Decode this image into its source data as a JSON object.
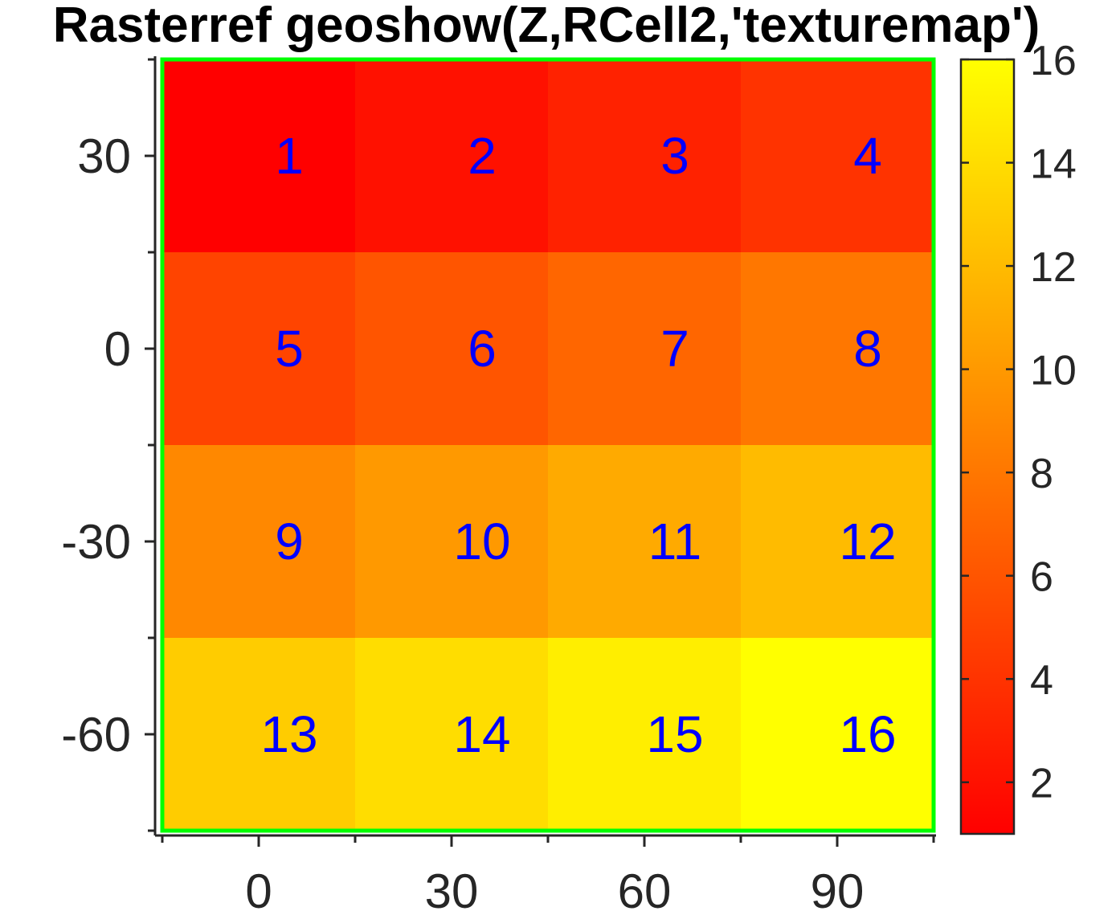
{
  "chart_data": {
    "type": "heatmap",
    "title": "Rasterref geoshow(Z,RCell2,'texturemap')",
    "xlabel": "",
    "ylabel": "",
    "x_ticks": [
      0,
      30,
      60,
      90
    ],
    "y_ticks": [
      30,
      0,
      -30,
      -60
    ],
    "xlim": [
      -15,
      105
    ],
    "ylim": [
      -75,
      45
    ],
    "cell_width": 30,
    "cell_height": 30,
    "x_centers": [
      0,
      30,
      60,
      90
    ],
    "y_centers": [
      30,
      0,
      -30,
      -60
    ],
    "values": [
      [
        1,
        2,
        3,
        4
      ],
      [
        5,
        6,
        7,
        8
      ],
      [
        9,
        10,
        11,
        12
      ],
      [
        13,
        14,
        15,
        16
      ]
    ],
    "colormap": "autumn",
    "clim": [
      1,
      16
    ],
    "colorbar": {
      "position": "right",
      "ticks": [
        2,
        4,
        6,
        8,
        10,
        12,
        14,
        16
      ]
    },
    "grid": false,
    "frame_color": "#00ff00",
    "cell_label_color": "#0000ff",
    "axis_color": "#262626"
  }
}
